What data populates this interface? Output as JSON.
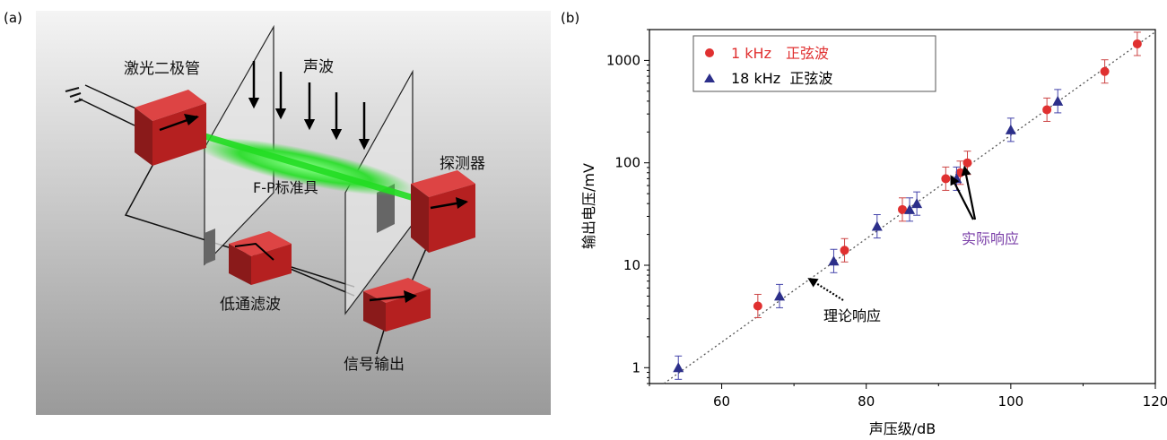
{
  "panel_a": {
    "label": "(a)",
    "components": {
      "laser": "激光二极管",
      "sound": "声波",
      "fp": "F-P标准具",
      "detector": "探测器",
      "filter": "低通滤波",
      "output": "信号输出"
    }
  },
  "panel_b": {
    "label": "(b)",
    "annotations": {
      "actual": "实际响应",
      "theory": "理论响应"
    }
  },
  "chart_data": {
    "type": "scatter",
    "xlabel": "声压级/dB",
    "ylabel": "输出电压/mV",
    "xlim": [
      50,
      120
    ],
    "ylim": [
      0.7,
      2000
    ],
    "yscale": "log",
    "xticks": [
      60,
      80,
      100,
      120
    ],
    "yticks": [
      1,
      10,
      100,
      1000
    ],
    "legend_position": "top-left",
    "series": [
      {
        "name": "1 kHz　正弦波",
        "marker": "circle",
        "color": "#e03030",
        "label_color": "#e03030",
        "x": [
          65,
          77,
          85,
          91,
          93,
          94,
          105,
          113,
          117.5
        ],
        "y": [
          4,
          14,
          35,
          70,
          80,
          100,
          330,
          780,
          1450
        ]
      },
      {
        "name": "18 kHz  正弦波",
        "marker": "triangle",
        "color": "#2c2f8a",
        "label_color": "#000000",
        "x": [
          54,
          68,
          75.5,
          81.5,
          86,
          87,
          92.5,
          100,
          106.5
        ],
        "y": [
          1.0,
          5,
          11,
          24,
          35,
          40,
          70,
          210,
          400
        ]
      }
    ],
    "trend_line": {
      "x": [
        52,
        120
      ],
      "y": [
        0.7,
        1900
      ]
    }
  }
}
